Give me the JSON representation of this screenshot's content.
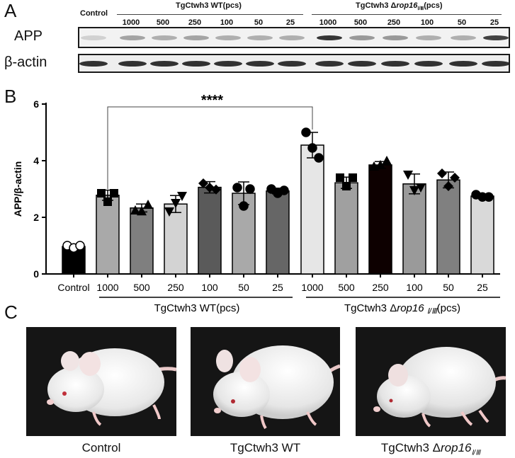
{
  "panelA": {
    "letter": "A",
    "control_label": "Control",
    "group_wt": "TgCtwh3 WT(pcs)",
    "group_ko_prefix": "TgCtwh3 Δ",
    "group_ko_gene": "rop16",
    "group_ko_sub": "Ⅰ/Ⅲ",
    "group_ko_suffix": "(pcs)",
    "lane_numbers": [
      "1000",
      "500",
      "250",
      "100",
      "50",
      "25",
      "1000",
      "500",
      "250",
      "100",
      "50",
      "25"
    ],
    "row_app": "APP",
    "row_actin": "β-actin"
  },
  "panelB": {
    "letter": "B"
  },
  "panelC": {
    "letter": "C",
    "captions": {
      "control": "Control",
      "wt": "TgCtwh3 WT",
      "ko_prefix": "TgCtwh3 Δ",
      "ko_gene": "rop16",
      "ko_sub": "Ⅰ/Ⅲ"
    }
  },
  "chart_data": {
    "type": "bar",
    "ylabel": "APP/β-actin",
    "ylim": [
      0,
      6
    ],
    "yticks": [
      "0",
      "2",
      "4",
      "6"
    ],
    "categories": [
      "Control",
      "1000",
      "500",
      "250",
      "100",
      "50",
      "25",
      "1000",
      "500",
      "250",
      "100",
      "50",
      "25"
    ],
    "values": [
      0.97,
      2.78,
      2.33,
      2.47,
      3.06,
      2.85,
      2.93,
      4.55,
      3.22,
      3.85,
      3.18,
      3.32,
      2.75
    ],
    "errors": [
      0.08,
      0.18,
      0.14,
      0.3,
      0.2,
      0.4,
      0.1,
      0.45,
      0.2,
      0.12,
      0.35,
      0.28,
      0.08
    ],
    "points": [
      [
        1.0,
        0.92,
        1.0
      ],
      [
        2.85,
        2.55,
        2.85
      ],
      [
        2.25,
        2.22,
        2.45
      ],
      [
        2.2,
        2.5,
        2.75
      ],
      [
        3.2,
        3.05,
        2.98
      ],
      [
        3.05,
        2.4,
        3.0
      ],
      [
        3.0,
        2.85,
        2.95
      ],
      [
        5.0,
        4.45,
        4.1
      ],
      [
        3.4,
        3.1,
        3.4
      ],
      [
        3.8,
        3.85,
        4.0
      ],
      [
        3.5,
        2.95,
        3.05
      ],
      [
        3.55,
        3.1,
        3.4
      ],
      [
        2.8,
        2.72,
        2.72
      ]
    ],
    "markers": [
      "circle-open",
      "square",
      "triangle",
      "triangle-down",
      "diamond",
      "circle",
      "circle",
      "circle",
      "square",
      "triangle",
      "triangle-down",
      "diamond",
      "circle"
    ],
    "group_labels": {
      "wt": "TgCtwh3 WT(pcs)",
      "ko_prefix": "TgCtwh3 Δ",
      "ko_gene": "rop16",
      "ko_sub": "Ⅰ/Ⅲ",
      "ko_suffix": "(pcs)"
    },
    "significance": {
      "label": "****",
      "from": "1000 (WT)",
      "to": "1000 (Δrop16)"
    },
    "colors": {
      "bars": [
        "#000000",
        "#a9a9a9",
        "#7f7f7f",
        "#d3d3d3",
        "#5a5a5a",
        "#a9a9a9",
        "#666666",
        "#e6e6e6",
        "#a0a0a0",
        "#0d0000",
        "#9a9a9a",
        "#808080",
        "#d9d9d9"
      ]
    }
  }
}
